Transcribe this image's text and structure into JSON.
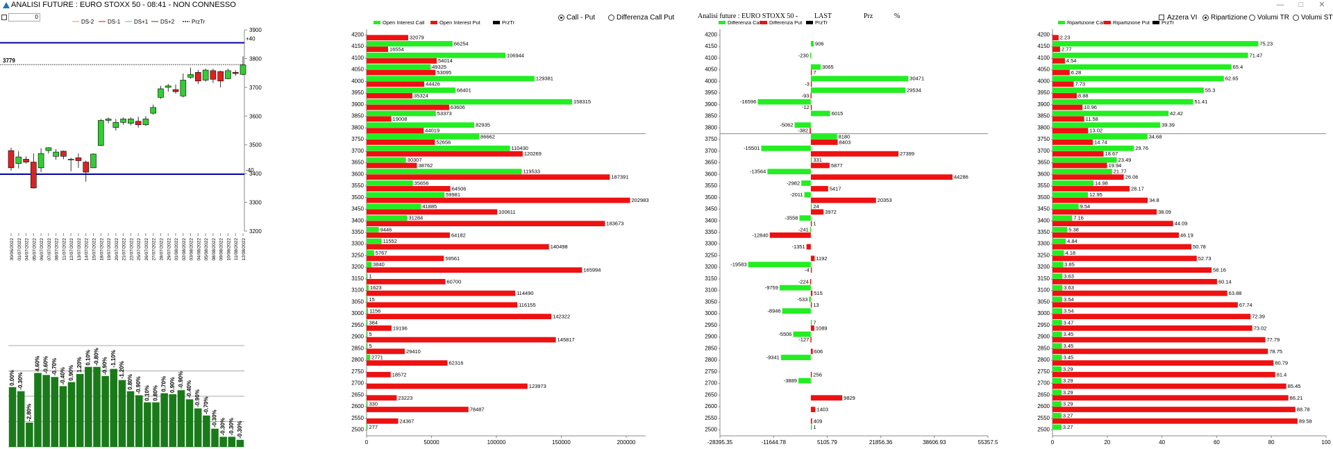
{
  "window": {
    "title": "ANALISI FUTURE : EURO STOXX 50 - 08:41 - NON CONNESSO",
    "minimize": "—",
    "maximize": "□",
    "close": "✕",
    "app_icon": "triangle-app-icon"
  },
  "toolbar": {
    "offset_value": "0"
  },
  "controls": {
    "mode_call_put": "Call - Put",
    "mode_diff": "Differenza Call Put",
    "mode_selected": "call_put",
    "azzera_vi": "Azzera VI",
    "ripartizione": "Ripartizione",
    "volumi_tr": "Volumi TR",
    "volumi_st": "Volumi ST",
    "right_selected": "ripartizione"
  },
  "diff_header": {
    "title": "Analisi future : EURO STOXX 50 -",
    "last": "LAST",
    "prz": "Prz",
    "pct": "%"
  },
  "colors": {
    "green": "#22ee22",
    "red": "#ee1111",
    "dark_green": "#1a7a1a",
    "navy": "#0000aa",
    "candle_up": "#33cc33",
    "candle_down": "#dd2222",
    "ds2": "#e8a47a",
    "ds1": "#dd3333",
    "dsp1": "#66dd66",
    "dsp2": "#228822"
  },
  "chart_data": [
    {
      "type": "candlestick",
      "legend": [
        "DS-2",
        "DS-1",
        "DS+1",
        "DS+2",
        "PrzTr"
      ],
      "y_ticks": [
        "3900",
        "3800",
        "3700",
        "3600",
        "3500",
        "3400",
        "3300",
        "3200"
      ],
      "ylim": [
        3200,
        3900
      ],
      "current_price": "3779",
      "upper_line_label": "+40",
      "upper_line_value": 3855,
      "lower_line_label": "-40",
      "lower_line_value": 3398,
      "dates": [
        "30/06/2022",
        "01/07/2022",
        "04/07/2022",
        "05/07/2022",
        "06/07/2022",
        "07/07/2022",
        "08/07/2022",
        "11/07/2022",
        "12/07/2022",
        "13/07/2022",
        "14/07/2022",
        "15/07/2022",
        "18/07/2022",
        "19/07/2022",
        "20/07/2022",
        "21/07/2022",
        "22/07/2022",
        "25/07/2022",
        "26/07/2022",
        "27/07/2022",
        "28/07/2022",
        "29/07/2022",
        "01/08/2022",
        "02/08/2022",
        "03/08/2022",
        "04/08/2022",
        "05/08/2022",
        "08/08/2022",
        "09/08/2022",
        "10/08/2022",
        "11/08/2022",
        "12/08/2022"
      ],
      "candles": [
        {
          "o": 3480,
          "c": 3420,
          "h": 3490,
          "l": 3410
        },
        {
          "o": 3435,
          "c": 3458,
          "h": 3478,
          "l": 3418
        },
        {
          "o": 3450,
          "c": 3440,
          "h": 3460,
          "l": 3435
        },
        {
          "o": 3440,
          "c": 3350,
          "h": 3470,
          "l": 3348
        },
        {
          "o": 3420,
          "c": 3470,
          "h": 3488,
          "l": 3405
        },
        {
          "o": 3480,
          "c": 3490,
          "h": 3492,
          "l": 3470
        },
        {
          "o": 3460,
          "c": 3475,
          "h": 3485,
          "l": 3448
        },
        {
          "o": 3478,
          "c": 3460,
          "h": 3480,
          "l": 3450
        },
        {
          "o": 3450,
          "c": 3450,
          "h": 3455,
          "l": 3408
        },
        {
          "o": 3455,
          "c": 3445,
          "h": 3470,
          "l": 3420
        },
        {
          "o": 3440,
          "c": 3405,
          "h": 3445,
          "l": 3372
        },
        {
          "o": 3420,
          "c": 3468,
          "h": 3470,
          "l": 3420
        },
        {
          "o": 3498,
          "c": 3585,
          "h": 3590,
          "l": 3495
        },
        {
          "o": 3585,
          "c": 3590,
          "h": 3595,
          "l": 3575
        },
        {
          "o": 3560,
          "c": 3578,
          "h": 3590,
          "l": 3550
        },
        {
          "o": 3578,
          "c": 3590,
          "h": 3595,
          "l": 3570
        },
        {
          "o": 3575,
          "c": 3590,
          "h": 3595,
          "l": 3568
        },
        {
          "o": 3582,
          "c": 3570,
          "h": 3598,
          "l": 3560
        },
        {
          "o": 3570,
          "c": 3590,
          "h": 3600,
          "l": 3565
        },
        {
          "o": 3610,
          "c": 3630,
          "h": 3640,
          "l": 3605
        },
        {
          "o": 3665,
          "c": 3695,
          "h": 3705,
          "l": 3660
        },
        {
          "o": 3700,
          "c": 3705,
          "h": 3712,
          "l": 3685
        },
        {
          "o": 3692,
          "c": 3685,
          "h": 3710,
          "l": 3678
        },
        {
          "o": 3670,
          "c": 3725,
          "h": 3748,
          "l": 3665
        },
        {
          "o": 3735,
          "c": 3745,
          "h": 3768,
          "l": 3730
        },
        {
          "o": 3752,
          "c": 3722,
          "h": 3760,
          "l": 3712
        },
        {
          "o": 3725,
          "c": 3760,
          "h": 3765,
          "l": 3720
        },
        {
          "o": 3758,
          "c": 3728,
          "h": 3765,
          "l": 3715
        },
        {
          "o": 3755,
          "c": 3722,
          "h": 3758,
          "l": 3700
        },
        {
          "o": 3730,
          "c": 3758,
          "h": 3765,
          "l": 3728
        },
        {
          "o": 3752,
          "c": 3748,
          "h": 3760,
          "l": 3740
        },
        {
          "o": 3745,
          "c": 3778,
          "h": 3808,
          "l": 3742
        }
      ]
    },
    {
      "type": "bar",
      "labels": [
        "0.00%",
        "-0.30%",
        "-2.80%",
        "4.60%",
        "-0.60%",
        "-0.70%",
        "-0.40%",
        "0.90%",
        "1.20%",
        "0.10%",
        "-0.80%",
        "-0.90%",
        "-1.10%",
        "-1.20%",
        "0.80%",
        "-0.90%",
        "0.10%",
        "0.80%",
        "0.70%",
        "0.90%",
        "-0.90%",
        "-0.40%",
        "-0.90%",
        "-0.70%",
        "-0.30%",
        "-0.30%",
        "-0.30%",
        "-0.30%"
      ],
      "heights": [
        0.59,
        0.55,
        0.24,
        0.73,
        0.71,
        0.69,
        0.6,
        0.64,
        0.72,
        0.79,
        0.79,
        0.7,
        0.77,
        0.66,
        0.55,
        0.51,
        0.44,
        0.44,
        0.53,
        0.52,
        0.56,
        0.47,
        0.38,
        0.31,
        0.18,
        0.1,
        0.1,
        0.07
      ],
      "y_gridlines": 5
    },
    {
      "type": "bar",
      "legend": [
        "Open Interest Call",
        "Open Interest Put",
        "PrzTr"
      ],
      "strikes": [
        "4200",
        "4150",
        "4100",
        "4050",
        "4000",
        "3950",
        "3900",
        "3850",
        "3800",
        "3750",
        "3700",
        "3650",
        "3600",
        "3550",
        "3500",
        "3450",
        "3400",
        "3350",
        "3300",
        "3250",
        "3200",
        "3150",
        "3100",
        "3050",
        "3000",
        "2950",
        "2900",
        "2850",
        "2800",
        "2750",
        "2700",
        "2650",
        "2600",
        "2550",
        "2500"
      ],
      "call": [
        null,
        66254,
        106944,
        49325,
        129381,
        68401,
        158315,
        53373,
        82935,
        86662,
        110430,
        30307,
        119533,
        35656,
        59981,
        41885,
        31284,
        9446,
        11552,
        5767,
        3840,
        1,
        1623,
        15,
        1156,
        384,
        5,
        5,
        2771,
        null,
        null,
        null,
        330,
        null,
        277
      ],
      "put": [
        32079,
        16554,
        54014,
        53095,
        44426,
        35324,
        63606,
        19008,
        44019,
        52656,
        120269,
        38762,
        187391,
        64506,
        202983,
        100611,
        183673,
        64182,
        140498,
        59561,
        165994,
        60700,
        114490,
        116155,
        142322,
        19196,
        145817,
        29410,
        62316,
        18572,
        123973,
        23223,
        78487,
        24367,
        null
      ],
      "x_ticks": [
        0,
        50000,
        100000,
        150000,
        200000
      ],
      "xlim": [
        0,
        215000
      ]
    },
    {
      "type": "bar",
      "legend": [
        "Differenza Call",
        "Differenza Put",
        "PrzTr"
      ],
      "strikes": [
        "4200",
        "4150",
        "4100",
        "4050",
        "4000",
        "3950",
        "3900",
        "3850",
        "3800",
        "3750",
        "3700",
        "3650",
        "3600",
        "3550",
        "3500",
        "3450",
        "3400",
        "3350",
        "3300",
        "3250",
        "3200",
        "3150",
        "3100",
        "3050",
        "3000",
        "2950",
        "2900",
        "2850",
        "2800",
        "2750",
        "2700",
        "2650",
        "2600",
        "2550",
        "2500"
      ],
      "call": [
        null,
        906,
        -230,
        3065,
        30471,
        29534,
        -16596,
        6015,
        -5062,
        8180,
        -15501,
        331,
        -13564,
        -2982,
        -2011,
        24,
        -3558,
        -241,
        null,
        null,
        -19583,
        null,
        -9759,
        -533,
        -8946,
        7,
        -5506,
        null,
        -9341,
        null,
        -3889,
        null,
        null,
        null,
        1
      ],
      "put": [
        null,
        null,
        null,
        7,
        -3,
        -93,
        -12,
        null,
        -382,
        8403,
        27399,
        5877,
        44286,
        5417,
        20353,
        3972,
        1,
        -12840,
        -1351,
        1192,
        -4,
        -224,
        515,
        13,
        null,
        1089,
        -127,
        606,
        null,
        256,
        null,
        9829,
        1403,
        409,
        null
      ],
      "x_ticks": [
        "-28395.35",
        "-11644.78",
        "5105.79",
        "21856.36",
        "38606.93",
        "55357.5"
      ],
      "xlim": [
        -28395.35,
        55357.5
      ]
    },
    {
      "type": "bar",
      "legend": [
        "Ripartizione Call",
        "Ripartizione Put",
        "PrzTr"
      ],
      "strikes": [
        "4200",
        "4150",
        "4100",
        "4050",
        "4000",
        "3950",
        "3900",
        "3850",
        "3800",
        "3750",
        "3700",
        "3650",
        "3600",
        "3550",
        "3500",
        "3450",
        "3400",
        "3350",
        "3300",
        "3250",
        "3200",
        "3150",
        "3100",
        "3050",
        "3000",
        "2950",
        "2900",
        "2850",
        "2800",
        "2750",
        "2700",
        "2650",
        "2600",
        "2550",
        "2500"
      ],
      "call": [
        null,
        75.23,
        71.47,
        65.4,
        62.65,
        55.3,
        51.41,
        42.42,
        39.39,
        34.68,
        29.76,
        23.49,
        21.77,
        14.98,
        12.95,
        9.54,
        7.16,
        5.38,
        4.84,
        4.18,
        3.85,
        3.63,
        3.63,
        3.54,
        3.54,
        3.47,
        3.45,
        3.45,
        3.45,
        3.29,
        3.29,
        3.29,
        3.29,
        3.27,
        3.27
      ],
      "put": [
        2.23,
        2.77,
        4.54,
        6.28,
        7.73,
        8.88,
        10.96,
        11.58,
        13.02,
        14.74,
        18.67,
        19.94,
        26.06,
        28.17,
        34.8,
        38.09,
        44.09,
        46.19,
        50.78,
        52.73,
        58.16,
        60.14,
        63.88,
        67.74,
        72.39,
        73.02,
        77.79,
        78.75,
        80.79,
        81.4,
        85.45,
        86.21,
        88.78,
        89.58,
        null
      ],
      "x_ticks": [
        0,
        20,
        40,
        60,
        80,
        100
      ],
      "xlim": [
        0,
        100
      ]
    }
  ]
}
